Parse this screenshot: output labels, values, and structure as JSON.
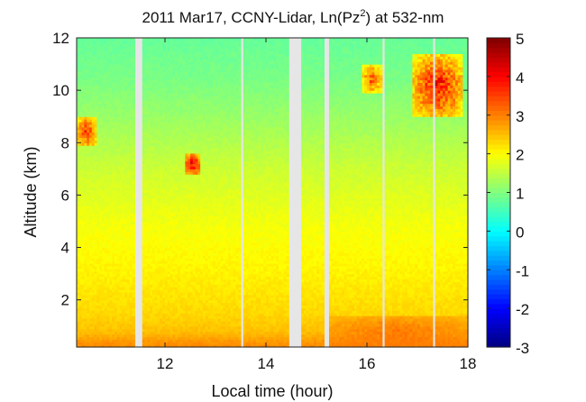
{
  "chart_data": {
    "type": "heatmap",
    "title_prefix": "2011 Mar17, CCNY-Lidar, Ln(Pz",
    "title_sup": "2",
    "title_suffix": ") at 532-nm",
    "xlabel": "Local time (hour)",
    "ylabel": "Altitude (km)",
    "xlim": [
      10.25,
      18.0
    ],
    "ylim": [
      0.2,
      12.0
    ],
    "x_ticks": [
      12,
      14,
      16,
      18
    ],
    "y_ticks": [
      2,
      4,
      6,
      8,
      10,
      12
    ],
    "colorbar": {
      "range": [
        -3,
        5
      ],
      "ticks": [
        -3,
        -2,
        -1,
        0,
        1,
        2,
        3,
        4,
        5
      ],
      "colormap": "jet"
    },
    "data_gaps_hours": [
      [
        11.38,
        11.55
      ],
      [
        13.52,
        13.56
      ],
      [
        14.47,
        14.72
      ],
      [
        15.17,
        15.23
      ],
      [
        16.3,
        16.34
      ],
      [
        17.32,
        17.36
      ]
    ],
    "background_profile": [
      {
        "altitude_km": 0.3,
        "value": 2.9
      },
      {
        "altitude_km": 0.8,
        "value": 2.5
      },
      {
        "altitude_km": 1.5,
        "value": 2.3
      },
      {
        "altitude_km": 3.0,
        "value": 2.1
      },
      {
        "altitude_km": 5.0,
        "value": 1.9
      },
      {
        "altitude_km": 7.0,
        "value": 1.6
      },
      {
        "altitude_km": 9.0,
        "value": 1.2
      },
      {
        "altitude_km": 10.5,
        "value": 0.95
      },
      {
        "altitude_km": 12.0,
        "value": 0.8
      }
    ],
    "features": [
      {
        "name": "cloud",
        "t_start": 12.4,
        "t_end": 12.7,
        "alt_low": 6.8,
        "alt_high": 7.6,
        "peak_value": 4.8
      },
      {
        "name": "cloud",
        "t_start": 10.25,
        "t_end": 10.65,
        "alt_low": 7.9,
        "alt_high": 9.0,
        "peak_value": 4.2
      },
      {
        "name": "cloud",
        "t_start": 16.9,
        "t_end": 17.9,
        "alt_low": 9.0,
        "alt_high": 11.4,
        "peak_value": 4.7
      },
      {
        "name": "cloud",
        "t_start": 15.9,
        "t_end": 16.3,
        "alt_low": 9.9,
        "alt_high": 11.0,
        "peak_value": 4.0
      },
      {
        "name": "aerosol layer",
        "t_start": 15.25,
        "t_end": 18.0,
        "alt_low": 0.2,
        "alt_high": 1.4,
        "peak_value": 3.2
      }
    ]
  }
}
